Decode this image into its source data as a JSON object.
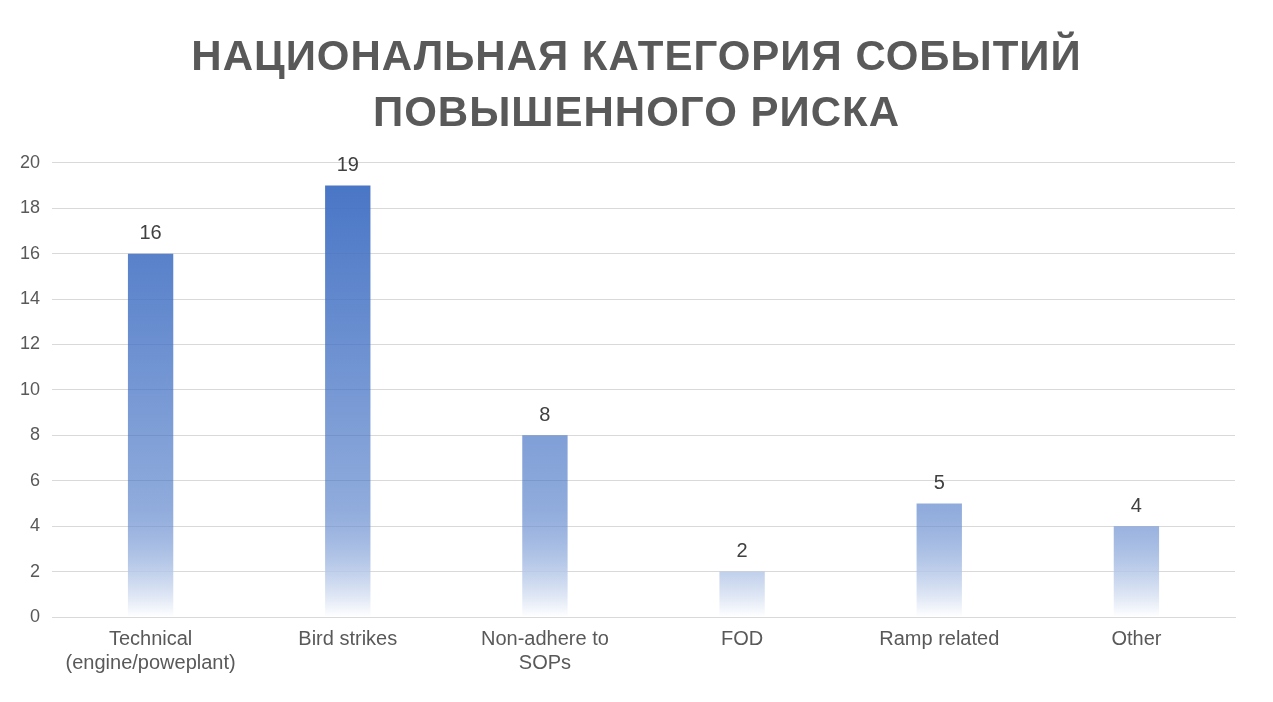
{
  "chart_data": {
    "type": "bar",
    "title": "НАЦИОНАЛЬНАЯ КАТЕГОРИЯ СОБЫТИЙ ПОВЫШЕННОГО РИСКА",
    "categories": [
      "Technical (engine/poweplant)",
      "Bird strikes",
      "Non-adhere to SOPs",
      "FOD",
      "Ramp related",
      "Other"
    ],
    "values": [
      16,
      19,
      8,
      2,
      5,
      4
    ],
    "color": "#4472c4",
    "ylim": [
      0,
      20
    ],
    "yticks": [
      0,
      2,
      4,
      6,
      8,
      10,
      12,
      14,
      16,
      18,
      20
    ],
    "grid": "y",
    "data_labels": true,
    "legend": false
  }
}
